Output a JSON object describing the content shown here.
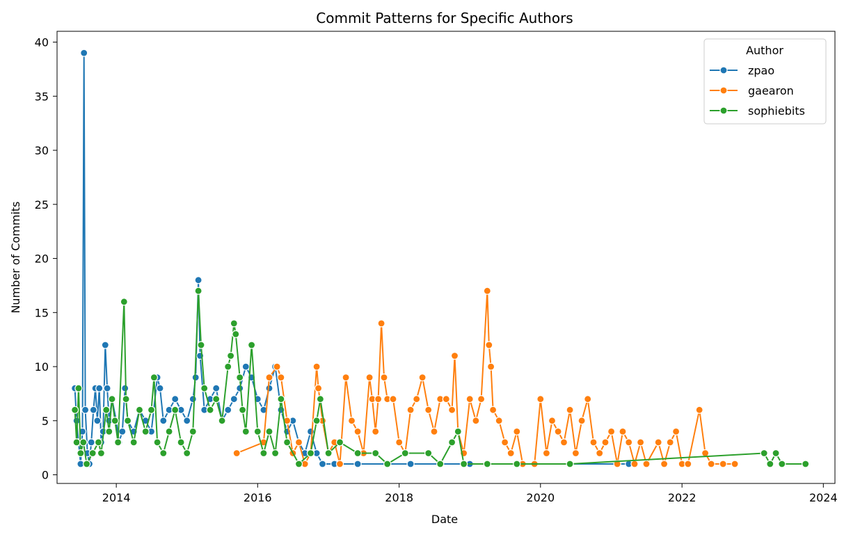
{
  "chart_data": {
    "type": "line",
    "title": "Commit Patterns for Specific Authors",
    "xlabel": "Date",
    "ylabel": "Number of Commits",
    "xlim": [
      "2013-03-01",
      "2024-03-01"
    ],
    "ylim": [
      -0.8,
      41
    ],
    "x_ticks": [
      "2014",
      "2016",
      "2018",
      "2020",
      "2022",
      "2024"
    ],
    "y_ticks": [
      0,
      5,
      10,
      15,
      20,
      25,
      30,
      35,
      40
    ],
    "grid": false,
    "legend": {
      "title": "Author",
      "position": "top-right"
    },
    "series": [
      {
        "name": "zpao",
        "color": "#1f77b4",
        "points": [
          [
            "2013-06-01",
            8
          ],
          [
            "2013-06-10",
            5
          ],
          [
            "2013-06-20",
            3
          ],
          [
            "2013-07-01",
            1
          ],
          [
            "2013-07-10",
            4
          ],
          [
            "2013-07-18",
            39
          ],
          [
            "2013-07-25",
            6
          ],
          [
            "2013-08-05",
            2
          ],
          [
            "2013-08-15",
            1
          ],
          [
            "2013-08-25",
            3
          ],
          [
            "2013-09-05",
            6
          ],
          [
            "2013-09-15",
            8
          ],
          [
            "2013-09-25",
            5
          ],
          [
            "2013-10-05",
            8
          ],
          [
            "2013-10-15",
            3
          ],
          [
            "2013-10-25",
            4
          ],
          [
            "2013-11-05",
            12
          ],
          [
            "2013-11-15",
            8
          ],
          [
            "2013-11-25",
            5
          ],
          [
            "2013-12-10",
            7
          ],
          [
            "2014-01-01",
            5
          ],
          [
            "2014-01-15",
            3
          ],
          [
            "2014-02-01",
            4
          ],
          [
            "2014-02-15",
            8
          ],
          [
            "2014-03-01",
            5
          ],
          [
            "2014-04-01",
            4
          ],
          [
            "2014-05-01",
            6
          ],
          [
            "2014-06-01",
            5
          ],
          [
            "2014-07-01",
            4
          ],
          [
            "2014-08-01",
            9
          ],
          [
            "2014-08-15",
            8
          ],
          [
            "2014-09-01",
            5
          ],
          [
            "2014-10-01",
            6
          ],
          [
            "2014-11-01",
            7
          ],
          [
            "2014-12-01",
            6
          ],
          [
            "2015-01-01",
            5
          ],
          [
            "2015-02-01",
            7
          ],
          [
            "2015-02-15",
            9
          ],
          [
            "2015-03-01",
            18
          ],
          [
            "2015-03-10",
            11
          ],
          [
            "2015-04-01",
            6
          ],
          [
            "2015-05-01",
            7
          ],
          [
            "2015-06-01",
            8
          ],
          [
            "2015-07-01",
            5
          ],
          [
            "2015-08-01",
            6
          ],
          [
            "2015-09-01",
            7
          ],
          [
            "2015-10-01",
            8
          ],
          [
            "2015-11-01",
            10
          ],
          [
            "2015-12-01",
            9
          ],
          [
            "2016-01-01",
            7
          ],
          [
            "2016-02-01",
            6
          ],
          [
            "2016-03-01",
            8
          ],
          [
            "2016-04-01",
            10
          ],
          [
            "2016-05-01",
            6
          ],
          [
            "2016-06-01",
            4
          ],
          [
            "2016-07-01",
            5
          ],
          [
            "2016-08-01",
            3
          ],
          [
            "2016-09-01",
            2
          ],
          [
            "2016-10-01",
            4
          ],
          [
            "2016-11-01",
            2
          ],
          [
            "2016-12-01",
            1
          ],
          [
            "2017-02-01",
            1
          ],
          [
            "2017-06-01",
            1
          ],
          [
            "2018-03-01",
            1
          ],
          [
            "2019-01-01",
            1
          ],
          [
            "2020-06-01",
            1
          ],
          [
            "2021-04-01",
            1
          ]
        ]
      },
      {
        "name": "gaearon",
        "color": "#ff7f0e",
        "points": [
          [
            "2015-09-15",
            2
          ],
          [
            "2016-02-01",
            3
          ],
          [
            "2016-03-01",
            9
          ],
          [
            "2016-04-10",
            10
          ],
          [
            "2016-05-01",
            9
          ],
          [
            "2016-06-01",
            5
          ],
          [
            "2016-07-01",
            2
          ],
          [
            "2016-08-01",
            3
          ],
          [
            "2016-09-01",
            1
          ],
          [
            "2016-10-01",
            2
          ],
          [
            "2016-11-01",
            10
          ],
          [
            "2016-11-10",
            8
          ],
          [
            "2016-12-01",
            5
          ],
          [
            "2017-01-01",
            2
          ],
          [
            "2017-02-01",
            3
          ],
          [
            "2017-03-01",
            1
          ],
          [
            "2017-04-01",
            9
          ],
          [
            "2017-05-01",
            5
          ],
          [
            "2017-06-01",
            4
          ],
          [
            "2017-07-01",
            2
          ],
          [
            "2017-08-01",
            9
          ],
          [
            "2017-08-15",
            7
          ],
          [
            "2017-09-01",
            4
          ],
          [
            "2017-09-15",
            7
          ],
          [
            "2017-10-01",
            14
          ],
          [
            "2017-10-15",
            9
          ],
          [
            "2017-11-01",
            7
          ],
          [
            "2017-12-01",
            7
          ],
          [
            "2018-01-01",
            3
          ],
          [
            "2018-02-01",
            2
          ],
          [
            "2018-03-01",
            6
          ],
          [
            "2018-04-01",
            7
          ],
          [
            "2018-05-01",
            9
          ],
          [
            "2018-06-01",
            6
          ],
          [
            "2018-07-01",
            4
          ],
          [
            "2018-08-01",
            7
          ],
          [
            "2018-09-01",
            7
          ],
          [
            "2018-10-01",
            6
          ],
          [
            "2018-10-15",
            11
          ],
          [
            "2018-11-01",
            4
          ],
          [
            "2018-12-01",
            2
          ],
          [
            "2019-01-01",
            7
          ],
          [
            "2019-02-01",
            5
          ],
          [
            "2019-03-01",
            7
          ],
          [
            "2019-04-01",
            17
          ],
          [
            "2019-04-10",
            12
          ],
          [
            "2019-04-20",
            10
          ],
          [
            "2019-05-01",
            6
          ],
          [
            "2019-06-01",
            5
          ],
          [
            "2019-07-01",
            3
          ],
          [
            "2019-08-01",
            2
          ],
          [
            "2019-09-01",
            4
          ],
          [
            "2019-10-01",
            1
          ],
          [
            "2019-12-01",
            1
          ],
          [
            "2020-01-01",
            7
          ],
          [
            "2020-02-01",
            2
          ],
          [
            "2020-03-01",
            5
          ],
          [
            "2020-04-01",
            4
          ],
          [
            "2020-05-01",
            3
          ],
          [
            "2020-06-01",
            6
          ],
          [
            "2020-07-01",
            2
          ],
          [
            "2020-08-01",
            5
          ],
          [
            "2020-09-01",
            7
          ],
          [
            "2020-10-01",
            3
          ],
          [
            "2020-11-01",
            2
          ],
          [
            "2020-12-01",
            3
          ],
          [
            "2021-01-01",
            4
          ],
          [
            "2021-02-01",
            1
          ],
          [
            "2021-03-01",
            4
          ],
          [
            "2021-04-01",
            3
          ],
          [
            "2021-05-01",
            1
          ],
          [
            "2021-06-01",
            3
          ],
          [
            "2021-07-01",
            1
          ],
          [
            "2021-09-01",
            3
          ],
          [
            "2021-10-01",
            1
          ],
          [
            "2021-11-01",
            3
          ],
          [
            "2021-12-01",
            4
          ],
          [
            "2022-01-01",
            1
          ],
          [
            "2022-02-01",
            1
          ],
          [
            "2022-04-01",
            6
          ],
          [
            "2022-05-01",
            2
          ],
          [
            "2022-06-01",
            1
          ],
          [
            "2022-08-01",
            1
          ],
          [
            "2022-10-01",
            1
          ]
        ]
      },
      {
        "name": "sophiebits",
        "color": "#2ca02c",
        "points": [
          [
            "2013-06-01",
            6
          ],
          [
            "2013-06-10",
            3
          ],
          [
            "2013-06-20",
            8
          ],
          [
            "2013-07-01",
            2
          ],
          [
            "2013-07-15",
            3
          ],
          [
            "2013-08-01",
            1
          ],
          [
            "2013-09-01",
            2
          ],
          [
            "2013-10-01",
            3
          ],
          [
            "2013-10-15",
            2
          ],
          [
            "2013-11-10",
            6
          ],
          [
            "2013-11-25",
            4
          ],
          [
            "2013-12-10",
            7
          ],
          [
            "2013-12-25",
            5
          ],
          [
            "2014-01-10",
            3
          ],
          [
            "2014-02-10",
            16
          ],
          [
            "2014-02-20",
            7
          ],
          [
            "2014-03-01",
            5
          ],
          [
            "2014-04-01",
            3
          ],
          [
            "2014-05-01",
            6
          ],
          [
            "2014-06-01",
            4
          ],
          [
            "2014-07-01",
            6
          ],
          [
            "2014-07-15",
            9
          ],
          [
            "2014-08-01",
            3
          ],
          [
            "2014-09-01",
            2
          ],
          [
            "2014-10-01",
            4
          ],
          [
            "2014-11-01",
            6
          ],
          [
            "2014-12-01",
            3
          ],
          [
            "2015-01-01",
            2
          ],
          [
            "2015-02-01",
            4
          ],
          [
            "2015-03-01",
            17
          ],
          [
            "2015-03-15",
            12
          ],
          [
            "2015-04-01",
            8
          ],
          [
            "2015-05-01",
            6
          ],
          [
            "2015-06-01",
            7
          ],
          [
            "2015-07-01",
            5
          ],
          [
            "2015-08-01",
            10
          ],
          [
            "2015-08-15",
            11
          ],
          [
            "2015-09-01",
            14
          ],
          [
            "2015-09-10",
            13
          ],
          [
            "2015-10-01",
            9
          ],
          [
            "2015-10-15",
            6
          ],
          [
            "2015-11-01",
            4
          ],
          [
            "2015-12-01",
            12
          ],
          [
            "2016-01-01",
            4
          ],
          [
            "2016-02-01",
            2
          ],
          [
            "2016-03-01",
            4
          ],
          [
            "2016-04-01",
            2
          ],
          [
            "2016-05-01",
            7
          ],
          [
            "2016-06-01",
            3
          ],
          [
            "2016-08-01",
            1
          ],
          [
            "2016-10-01",
            2
          ],
          [
            "2016-11-01",
            5
          ],
          [
            "2016-11-20",
            7
          ],
          [
            "2017-01-01",
            2
          ],
          [
            "2017-03-01",
            3
          ],
          [
            "2017-06-01",
            2
          ],
          [
            "2017-09-01",
            2
          ],
          [
            "2017-11-01",
            1
          ],
          [
            "2018-02-01",
            2
          ],
          [
            "2018-06-01",
            2
          ],
          [
            "2018-08-01",
            1
          ],
          [
            "2018-10-01",
            3
          ],
          [
            "2018-11-01",
            4
          ],
          [
            "2018-12-01",
            1
          ],
          [
            "2019-04-01",
            1
          ],
          [
            "2019-09-01",
            1
          ],
          [
            "2020-06-01",
            1
          ],
          [
            "2023-03-01",
            2
          ],
          [
            "2023-04-01",
            1
          ],
          [
            "2023-05-01",
            2
          ],
          [
            "2023-06-01",
            1
          ],
          [
            "2023-10-01",
            1
          ]
        ]
      }
    ]
  }
}
